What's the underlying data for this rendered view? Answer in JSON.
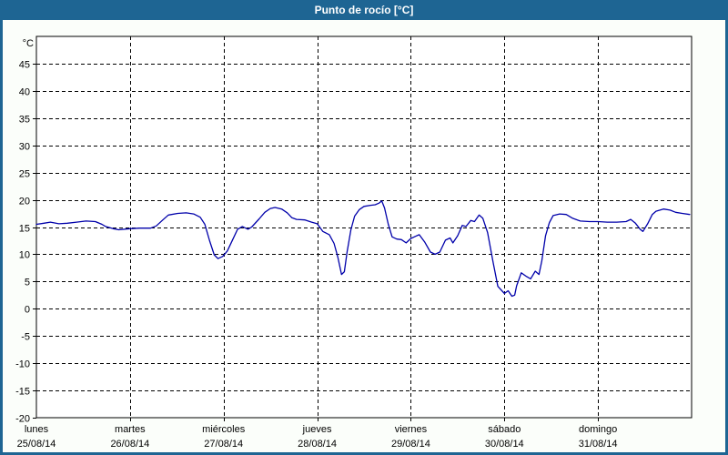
{
  "window": {
    "title": "Punto de rocío [°C]"
  },
  "colors": {
    "titlebar_bg": "#1E6593",
    "border": "#1E6593",
    "title_text": "#FFFFFF",
    "content_bg": "#FBFEFA",
    "plot_bg": "#FFFFFF",
    "grid": "#000000",
    "axis_text": "#000000",
    "line": "#0000AA"
  },
  "chart_data": {
    "type": "line",
    "title": "Punto de rocío [°C]",
    "ylabel": "°C",
    "ylim": [
      -20,
      50
    ],
    "yticks": [
      45,
      40,
      35,
      30,
      25,
      20,
      15,
      10,
      5,
      0,
      -5,
      -10,
      -15,
      -20
    ],
    "grid": "dashed",
    "legend": "none",
    "x_days": [
      {
        "weekday": "lunes",
        "date": "25/08/14"
      },
      {
        "weekday": "martes",
        "date": "26/08/14"
      },
      {
        "weekday": "miércoles",
        "date": "27/08/14"
      },
      {
        "weekday": "jueves",
        "date": "28/08/14"
      },
      {
        "weekday": "viernes",
        "date": "29/08/14"
      },
      {
        "weekday": "sábado",
        "date": "30/08/14"
      },
      {
        "weekday": "domingo",
        "date": "31/08/14"
      }
    ],
    "series": [
      {
        "name": "Punto de rocío",
        "color": "#0000AA",
        "points": [
          [
            0.0,
            15.5
          ],
          [
            0.08,
            15.7
          ],
          [
            0.15,
            15.9
          ],
          [
            0.24,
            15.6
          ],
          [
            0.33,
            15.7
          ],
          [
            0.43,
            15.9
          ],
          [
            0.53,
            16.1
          ],
          [
            0.63,
            16.0
          ],
          [
            0.7,
            15.5
          ],
          [
            0.74,
            15.1
          ],
          [
            0.82,
            14.7
          ],
          [
            0.88,
            14.5
          ],
          [
            1.0,
            14.7
          ],
          [
            1.1,
            14.8
          ],
          [
            1.22,
            14.8
          ],
          [
            1.28,
            15.2
          ],
          [
            1.35,
            16.3
          ],
          [
            1.41,
            17.2
          ],
          [
            1.51,
            17.5
          ],
          [
            1.6,
            17.6
          ],
          [
            1.68,
            17.4
          ],
          [
            1.75,
            16.8
          ],
          [
            1.8,
            15.5
          ],
          [
            1.85,
            12.5
          ],
          [
            1.9,
            9.9
          ],
          [
            1.94,
            9.2
          ],
          [
            1.99,
            9.6
          ],
          [
            2.04,
            10.6
          ],
          [
            2.1,
            12.8
          ],
          [
            2.15,
            14.6
          ],
          [
            2.2,
            15.1
          ],
          [
            2.26,
            14.6
          ],
          [
            2.3,
            15.0
          ],
          [
            2.38,
            16.5
          ],
          [
            2.44,
            17.7
          ],
          [
            2.5,
            18.4
          ],
          [
            2.55,
            18.6
          ],
          [
            2.62,
            18.3
          ],
          [
            2.68,
            17.6
          ],
          [
            2.73,
            16.7
          ],
          [
            2.78,
            16.4
          ],
          [
            2.87,
            16.3
          ],
          [
            2.94,
            15.9
          ],
          [
            3.0,
            15.6
          ],
          [
            3.06,
            14.2
          ],
          [
            3.13,
            13.6
          ],
          [
            3.18,
            12.0
          ],
          [
            3.22,
            9.5
          ],
          [
            3.26,
            6.3
          ],
          [
            3.29,
            6.8
          ],
          [
            3.32,
            10.5
          ],
          [
            3.36,
            14.5
          ],
          [
            3.4,
            17.0
          ],
          [
            3.45,
            18.2
          ],
          [
            3.5,
            18.8
          ],
          [
            3.57,
            19.0
          ],
          [
            3.62,
            19.1
          ],
          [
            3.66,
            19.4
          ],
          [
            3.69,
            19.8
          ],
          [
            3.72,
            18.5
          ],
          [
            3.76,
            15.5
          ],
          [
            3.8,
            13.2
          ],
          [
            3.85,
            12.8
          ],
          [
            3.9,
            12.7
          ],
          [
            3.95,
            12.1
          ],
          [
            4.0,
            12.9
          ],
          [
            4.05,
            13.3
          ],
          [
            4.09,
            13.6
          ],
          [
            4.15,
            12.2
          ],
          [
            4.21,
            10.4
          ],
          [
            4.26,
            10.0
          ],
          [
            4.31,
            10.4
          ],
          [
            4.37,
            12.6
          ],
          [
            4.42,
            13.0
          ],
          [
            4.45,
            12.1
          ],
          [
            4.5,
            13.4
          ],
          [
            4.55,
            15.3
          ],
          [
            4.59,
            15.1
          ],
          [
            4.64,
            16.2
          ],
          [
            4.68,
            16.0
          ],
          [
            4.73,
            17.2
          ],
          [
            4.77,
            16.6
          ],
          [
            4.82,
            14.0
          ],
          [
            4.88,
            8.5
          ],
          [
            4.93,
            4.1
          ],
          [
            5.0,
            2.8
          ],
          [
            5.04,
            3.3
          ],
          [
            5.08,
            2.3
          ],
          [
            5.11,
            2.5
          ],
          [
            5.13,
            4.2
          ],
          [
            5.18,
            6.6
          ],
          [
            5.23,
            6.0
          ],
          [
            5.28,
            5.5
          ],
          [
            5.33,
            6.9
          ],
          [
            5.37,
            6.3
          ],
          [
            5.4,
            8.8
          ],
          [
            5.44,
            13.4
          ],
          [
            5.48,
            15.8
          ],
          [
            5.52,
            17.1
          ],
          [
            5.59,
            17.4
          ],
          [
            5.66,
            17.3
          ],
          [
            5.73,
            16.6
          ],
          [
            5.81,
            16.1
          ],
          [
            5.91,
            16.0
          ],
          [
            6.0,
            16.0
          ],
          [
            6.1,
            15.9
          ],
          [
            6.2,
            15.9
          ],
          [
            6.3,
            16.0
          ],
          [
            6.35,
            16.4
          ],
          [
            6.4,
            15.7
          ],
          [
            6.45,
            14.6
          ],
          [
            6.48,
            14.2
          ],
          [
            6.53,
            15.6
          ],
          [
            6.58,
            17.3
          ],
          [
            6.62,
            17.9
          ],
          [
            6.7,
            18.3
          ],
          [
            6.77,
            18.1
          ],
          [
            6.83,
            17.7
          ],
          [
            6.9,
            17.5
          ],
          [
            6.98,
            17.3
          ]
        ]
      }
    ]
  }
}
